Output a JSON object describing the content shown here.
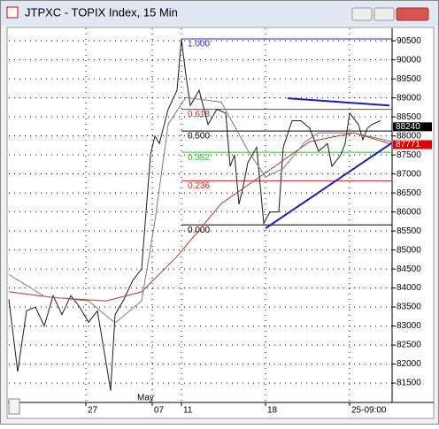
{
  "chart_data": {
    "type": "line",
    "title": "JTPXC - TOPIX Index, 15 Min",
    "xlim": [
      0,
      433
    ],
    "xticks": [
      {
        "value": 87,
        "label": "27"
      },
      {
        "value": 162,
        "label": "07"
      },
      {
        "value": 195,
        "label": "11"
      },
      {
        "value": 290,
        "label": "18"
      },
      {
        "value": 385,
        "label": "25-09:00"
      }
    ],
    "annotations": [
      {
        "text": "May",
        "x": 145
      }
    ],
    "ylim": [
      80990,
      90830
    ],
    "yticks": [
      81500,
      82000,
      82500,
      83000,
      83500,
      84000,
      84500,
      85000,
      85500,
      86000,
      86500,
      87000,
      87500,
      88000,
      88500,
      89000,
      89500,
      90000,
      90500
    ],
    "grid": true,
    "series": [
      {
        "color": "#1a1a1a",
        "x": [
          0,
          10,
          20,
          30,
          40,
          50,
          60,
          70,
          80,
          90,
          100,
          108,
          115,
          120,
          130,
          140,
          150,
          155,
          160,
          165,
          170,
          180,
          190,
          195,
          200,
          205,
          215,
          225,
          235,
          245,
          250,
          255,
          260,
          265,
          270,
          280,
          288,
          295,
          305,
          310,
          320,
          330,
          340,
          350,
          360,
          365,
          375,
          380,
          385,
          395,
          400,
          405,
          410,
          420
        ],
        "values": [
          83700,
          81800,
          83400,
          83500,
          83000,
          83800,
          83300,
          83800,
          83500,
          83100,
          83400,
          82300,
          81300,
          83300,
          83700,
          84200,
          84500,
          86000,
          87500,
          88000,
          87800,
          88700,
          89200,
          90550,
          89600,
          88800,
          89200,
          88300,
          88700,
          88600,
          87200,
          87500,
          86200,
          86700,
          87300,
          87700,
          85700,
          86000,
          86000,
          87700,
          88400,
          88400,
          88200,
          87600,
          87800,
          87200,
          87500,
          87800,
          88600,
          88300,
          87900,
          88200,
          88300,
          88400
        ]
      },
      {
        "color": "#c0302a",
        "x": [
          0,
          50,
          110,
          150,
          190,
          240,
          290,
          340,
          390,
          433
        ],
        "values": [
          83900,
          83750,
          83660,
          83900,
          84830,
          86220,
          87030,
          87850,
          88080,
          87780
        ]
      },
      {
        "color": "#7a7a7a",
        "x": [
          0,
          40,
          90,
          120,
          150,
          165,
          180,
          200,
          240,
          270,
          290,
          310,
          335,
          350,
          390,
          433
        ],
        "values": [
          84360,
          83780,
          83660,
          83080,
          83660,
          85750,
          88310,
          89010,
          88890,
          87620,
          86920,
          87150,
          87850,
          88080,
          88080,
          87850
        ]
      }
    ],
    "fib_levels": [
      {
        "label": "1.000",
        "value": 90550,
        "color": "#2a2ad0"
      },
      {
        "label": "0.618",
        "value": 88700,
        "color": "#d02020"
      },
      {
        "label": "0.500",
        "value": 88130,
        "color": "#000000"
      },
      {
        "label": "0.382",
        "value": 87570,
        "color": "#30c030"
      },
      {
        "label": "0.236",
        "value": 86820,
        "color": "#d02020"
      },
      {
        "label": "0.000",
        "value": 85660,
        "color": "#000000"
      }
    ],
    "trendlines": [
      {
        "x": [
          315,
          430
        ],
        "values": [
          88990,
          88800
        ],
        "color": "#1a1acc"
      },
      {
        "x": [
          290,
          433
        ],
        "values": [
          85570,
          87820
        ],
        "color": "#1a1acc"
      }
    ],
    "price_labels": [
      {
        "value": 88240,
        "color": "#000000"
      },
      {
        "value": 87771,
        "color": "#e00000"
      }
    ]
  }
}
